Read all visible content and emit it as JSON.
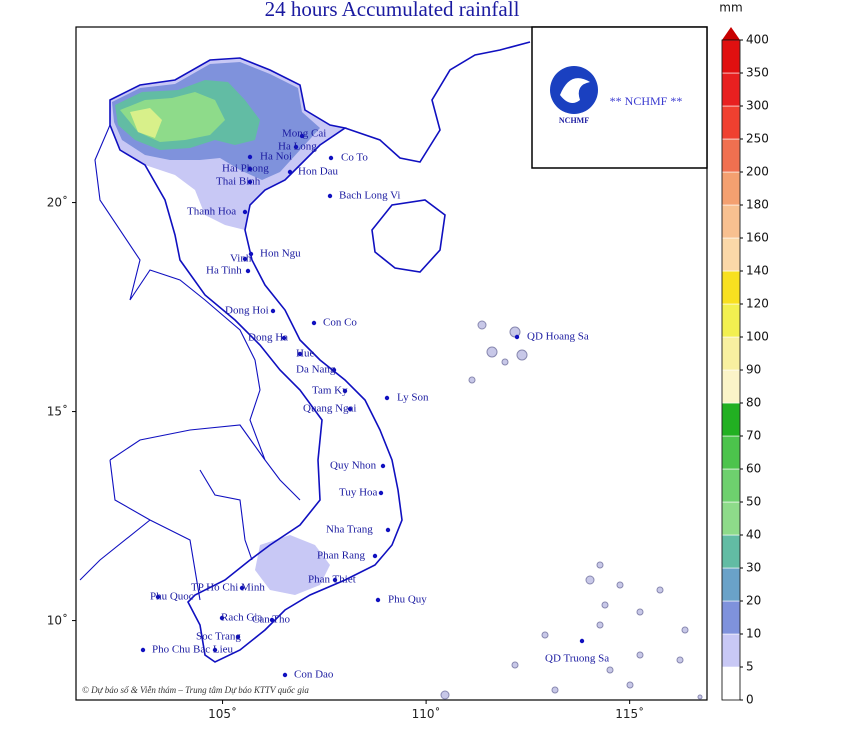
{
  "title": "24 hours Accumulated rainfall",
  "map": {
    "lonlim": [
      101.4,
      116.9
    ],
    "latlim": [
      8.1,
      24.2
    ],
    "lon_ticks": [
      {
        "value": 105,
        "label": "105˚"
      },
      {
        "value": 110,
        "label": "110˚"
      },
      {
        "value": 115,
        "label": "115˚"
      }
    ],
    "lat_ticks": [
      {
        "value": 20,
        "label": "20˚"
      },
      {
        "value": 15,
        "label": "15˚"
      },
      {
        "value": 10,
        "label": "10˚"
      }
    ],
    "places": [
      {
        "name": "Mong Cai"
      },
      {
        "name": "Ha Long"
      },
      {
        "name": "Co To"
      },
      {
        "name": "Ha Noi"
      },
      {
        "name": "Hai Phong"
      },
      {
        "name": "Thai Binh"
      },
      {
        "name": "Hon Dau"
      },
      {
        "name": "Bach Long Vi"
      },
      {
        "name": "Thanh Hoa"
      },
      {
        "name": "Vinh"
      },
      {
        "name": "Hon Ngu"
      },
      {
        "name": "Ha Tinh"
      },
      {
        "name": "Dong Hoi"
      },
      {
        "name": "Con Co"
      },
      {
        "name": "Dong Ha"
      },
      {
        "name": "Hue"
      },
      {
        "name": "Da Nang"
      },
      {
        "name": "Tam Ky"
      },
      {
        "name": "Ly Son"
      },
      {
        "name": "Quang Ngai"
      },
      {
        "name": "QD Hoang Sa"
      },
      {
        "name": "Quy Nhon"
      },
      {
        "name": "Tuy Hoa"
      },
      {
        "name": "Nha Trang"
      },
      {
        "name": "Phan Rang"
      },
      {
        "name": "Phan Thiet"
      },
      {
        "name": "TP Ho Chi Minh"
      },
      {
        "name": "Phu Quy"
      },
      {
        "name": "Phu Quoc"
      },
      {
        "name": "Rach Gia"
      },
      {
        "name": "Can Tho"
      },
      {
        "name": "Soc Trang"
      },
      {
        "name": "Bac Lieu"
      },
      {
        "name": "Pho Chu"
      },
      {
        "name": "Con Dao"
      },
      {
        "name": "QD Truong Sa"
      }
    ]
  },
  "logo": {
    "badge": "NCHMF",
    "text": "** NCHMF **"
  },
  "credit": "© Dự báo số & Viễn thám – Trung tâm Dự báo KTTV quốc gia",
  "colorbar": {
    "unit": "mm",
    "levels": [
      0,
      5,
      10,
      20,
      30,
      40,
      50,
      60,
      70,
      80,
      90,
      100,
      120,
      140,
      160,
      180,
      200,
      250,
      300,
      350,
      400
    ],
    "colors": [
      "#ffffff",
      "#c8c8f5",
      "#7f92dc",
      "#6aa2c8",
      "#62bca4",
      "#8edb8a",
      "#6ed06e",
      "#4cc44c",
      "#22b022",
      "#fbf4c8",
      "#f8f0a0",
      "#f2f050",
      "#f8e020",
      "#fbd8a8",
      "#f8c090",
      "#f4a070",
      "#f07050",
      "#f04030",
      "#e82020",
      "#e01010",
      "#c80000"
    ]
  }
}
